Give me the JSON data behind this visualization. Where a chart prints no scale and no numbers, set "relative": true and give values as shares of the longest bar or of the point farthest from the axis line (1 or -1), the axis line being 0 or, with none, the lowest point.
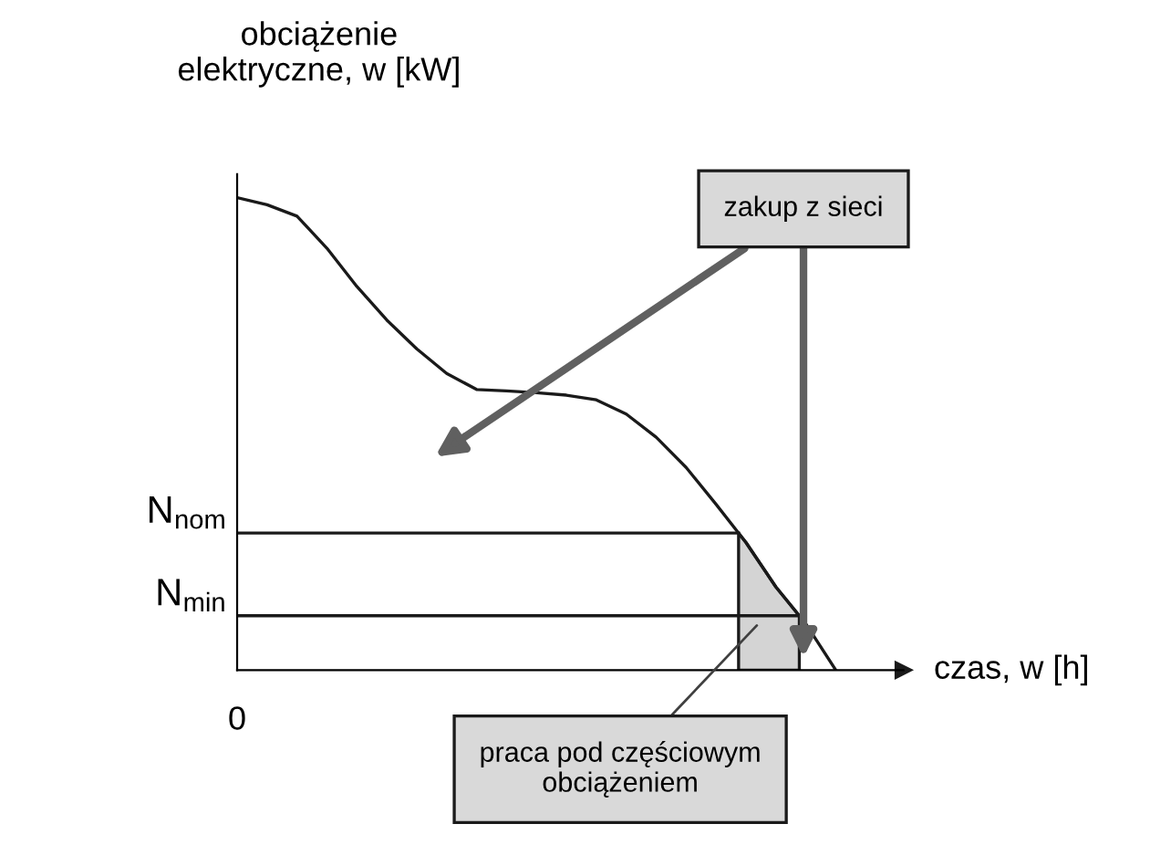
{
  "chart_data": {
    "type": "line",
    "relative": true,
    "xlabel": "czas, w [h]",
    "ylabel": "obciążenie\nelektryczne, w [kW]",
    "categories": [
      null,
      null,
      null,
      null,
      null,
      null,
      null,
      null,
      null,
      null,
      null,
      null,
      null,
      null,
      null,
      null,
      null,
      null,
      null,
      null,
      null
    ],
    "series": [
      {
        "color": "#1a1a1a",
        "values": [
          1,
          0.985,
          0.961,
          0.893,
          0.812,
          0.741,
          0.68,
          0.628,
          0.594,
          0.591,
          0.587,
          0.582,
          0.572,
          0.542,
          0.493,
          0.429,
          0.351,
          0.27,
          0.176,
          0.098,
          0
        ]
      }
    ],
    "ref_lines": [
      {
        "axis": "y",
        "value": 0.29,
        "label": "N$_{nom}$",
        "color": "#1a1a1a"
      },
      {
        "axis": "y",
        "value": 0.115,
        "label": "N$_{min}$",
        "color": "#1a1a1a"
      }
    ],
    "annotations": [
      "zakup z sieci",
      "praca pod częściowym\nobciążeniem",
      "0"
    ],
    "grid": false,
    "marker": "none",
    "line_style": "solid"
  }
}
